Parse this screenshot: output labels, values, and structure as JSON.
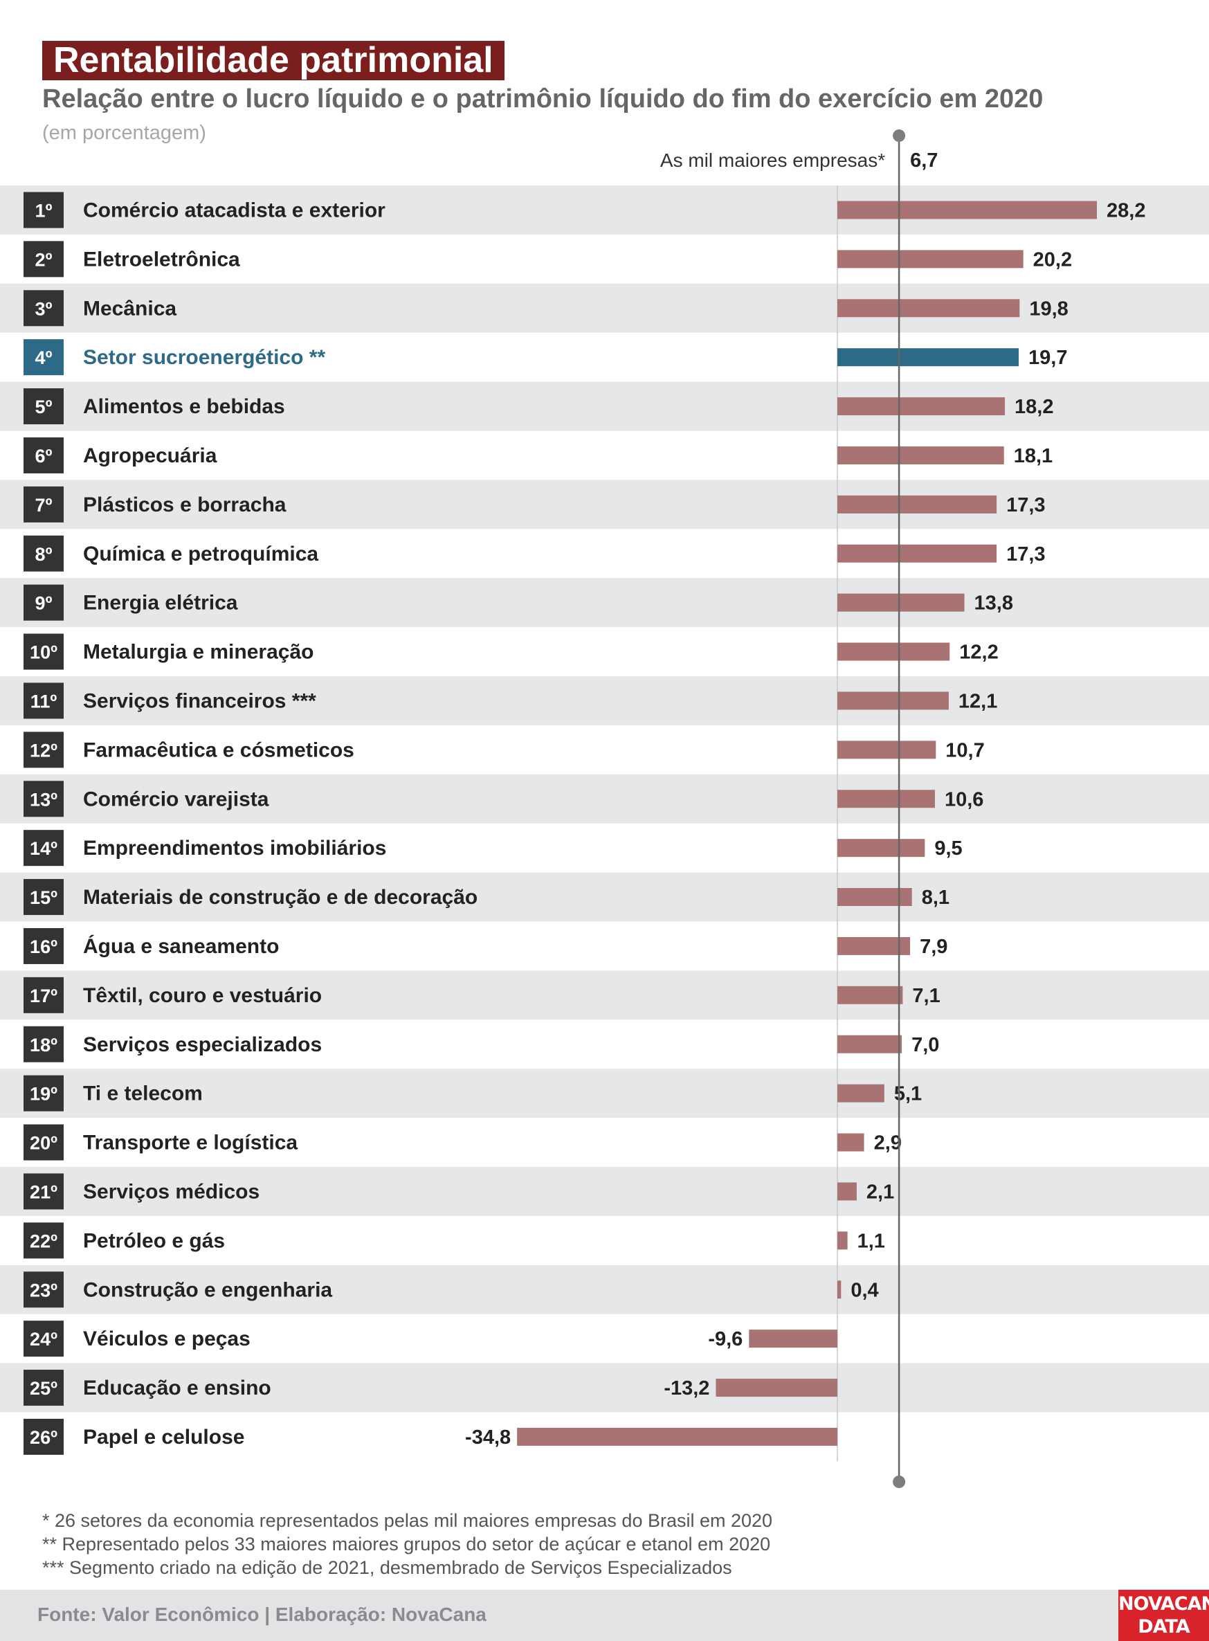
{
  "header": {
    "title": "Rentabilidade patrimonial",
    "subtitle": "Relação entre o lucro líquido e o patrimônio líquido do fim do exercício em 2020",
    "units": "(em porcentagem)"
  },
  "colors": {
    "bar": "#a97373",
    "highlight_bar": "#2c6a88",
    "highlight_text": "#2c6a88",
    "rank_bg": "#333333",
    "stripe": "#e6e7e9",
    "title_bg": "#7a1e1e",
    "logo_bg": "#d9232a"
  },
  "chart_data": {
    "type": "bar",
    "orientation": "horizontal",
    "reference_line": {
      "label": "As mil maiores empresas*",
      "value": 6.7,
      "value_label": "6,7"
    },
    "highlight_index": 3,
    "categories": [
      "Comércio atacadista e exterior",
      "Eletroeletrônica",
      "Mecânica",
      "Setor sucroenergético **",
      "Alimentos e bebidas",
      "Agropecuária",
      "Plásticos e borracha",
      "Química e petroquímica",
      "Energia elétrica",
      "Metalurgia e mineração",
      "Serviços financeiros ***",
      "Farmacêutica e cósmeticos",
      "Comércio varejista",
      "Empreendimentos imobiliários",
      "Materiais de construção e de decoração",
      "Água e saneamento",
      "Têxtil, couro e vestuário",
      "Serviços especializados",
      "Ti e telecom",
      "Transporte e logística",
      "Serviços médicos",
      "Petróleo e gás",
      "Construção e engenharia",
      "Véiculos e peças",
      "Educação e ensino",
      "Papel e celulose"
    ],
    "ranks": [
      "1º",
      "2º",
      "3º",
      "4º",
      "5º",
      "6º",
      "7º",
      "8º",
      "9º",
      "10º",
      "11º",
      "12º",
      "13º",
      "14º",
      "15º",
      "16º",
      "17º",
      "18º",
      "19º",
      "20º",
      "21º",
      "22º",
      "23º",
      "24º",
      "25º",
      "26º"
    ],
    "values": [
      28.2,
      20.2,
      19.8,
      19.7,
      18.2,
      18.1,
      17.3,
      17.3,
      13.8,
      12.2,
      12.1,
      10.7,
      10.6,
      9.5,
      8.1,
      7.9,
      7.1,
      7.0,
      5.1,
      2.9,
      2.1,
      1.1,
      0.4,
      -9.6,
      -13.2,
      -34.8
    ],
    "value_labels": [
      "28,2",
      "20,2",
      "19,8",
      "19,7",
      "18,2",
      "18,1",
      "17,3",
      "17,3",
      "13,8",
      "12,2",
      "12,1",
      "10,7",
      "10,6",
      "9,5",
      "8,1",
      "7,9",
      "7,1",
      "7,0",
      "5,1",
      "2,9",
      "2,1",
      "1,1",
      "0,4",
      "-9,6",
      "-13,2",
      "-34,8"
    ]
  },
  "notes": [
    "* 26 setores da economia representados pelas mil maiores empresas do Brasil em 2020",
    "** Representado pelos 33 maiores maiores grupos do setor de açúcar e etanol em 2020",
    "*** Segmento criado na edição de 2021, desmembrado de Serviços Especializados"
  ],
  "footer": {
    "source": "Fonte: Valor Econômico | Elaboração: NovaCana",
    "logo_line1": "NOVACANA",
    "logo_line2": "DATA"
  }
}
